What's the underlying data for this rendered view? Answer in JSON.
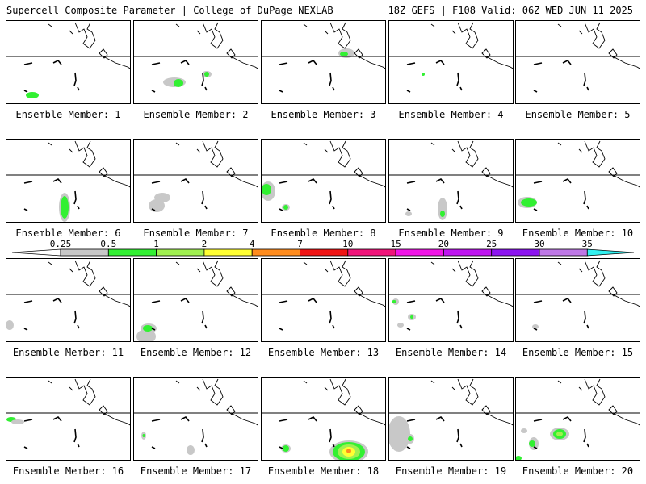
{
  "header": {
    "left_title": "Supercell Composite Parameter | College of DuPage NEXLAB",
    "right_title": "18Z GEFS | F108 Valid: 06Z WED JUN 11 2025"
  },
  "panels": [
    {
      "member": 1,
      "label": "Ensemble Member: 1"
    },
    {
      "member": 2,
      "label": "Ensemble Member: 2"
    },
    {
      "member": 3,
      "label": "Ensemble Member: 3"
    },
    {
      "member": 4,
      "label": "Ensemble Member: 4"
    },
    {
      "member": 5,
      "label": "Ensemble Member: 5"
    },
    {
      "member": 6,
      "label": "Ensemble Member: 6"
    },
    {
      "member": 7,
      "label": "Ensemble Member: 7"
    },
    {
      "member": 8,
      "label": "Ensemble Member: 8"
    },
    {
      "member": 9,
      "label": "Ensemble Member: 9"
    },
    {
      "member": 10,
      "label": "Ensemble Member: 10"
    },
    {
      "member": 11,
      "label": "Ensemble Member: 11"
    },
    {
      "member": 12,
      "label": "Ensemble Member: 12"
    },
    {
      "member": 13,
      "label": "Ensemble Member: 13"
    },
    {
      "member": 14,
      "label": "Ensemble Member: 14"
    },
    {
      "member": 15,
      "label": "Ensemble Member: 15"
    },
    {
      "member": 16,
      "label": "Ensemble Member: 16"
    },
    {
      "member": 17,
      "label": "Ensemble Member: 17"
    },
    {
      "member": 18,
      "label": "Ensemble Member: 18"
    },
    {
      "member": 19,
      "label": "Ensemble Member: 19"
    },
    {
      "member": 20,
      "label": "Ensemble Member: 20"
    }
  ],
  "colorbar": {
    "labels": [
      "0.25",
      "0.5",
      "1",
      "2",
      "4",
      "7",
      "10",
      "15",
      "20",
      "25",
      "30",
      "35"
    ],
    "colors": [
      "#ffffff",
      "#c8c8c8",
      "#32f032",
      "#a0f050",
      "#ffff32",
      "#ff8c1e",
      "#f01414",
      "#f0147a",
      "#f014e6",
      "#be14f0",
      "#8c14f0",
      "#be78e6",
      "#32f0f0"
    ]
  },
  "style": {
    "outline_color": "#000000",
    "sub_color": "#c8c8c8",
    "low_color": "#32f032",
    "mid_color": "#a0f050",
    "high_color": "#ffff32",
    "peak_color": "#ff8c1e"
  }
}
